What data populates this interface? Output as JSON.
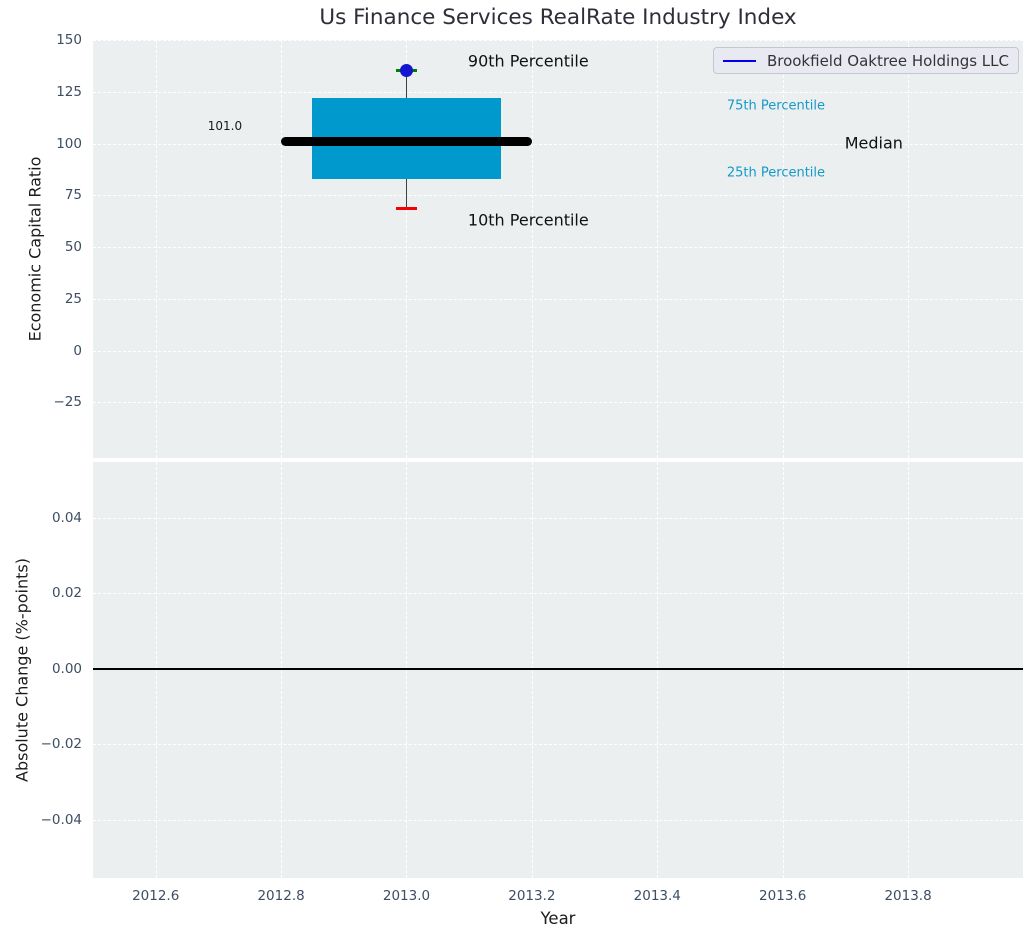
{
  "header": {
    "title": "Us Finance Services RealRate Industry Index"
  },
  "styles": {
    "plot_background": "#eceff0",
    "grid_color": "#ffffff",
    "tick_color": "#3d4e63",
    "title_color": "#2e2e38",
    "legend_background": "#e9eaf1"
  },
  "chart_data": [
    {
      "type": "boxplot",
      "title": "Us Finance Services RealRate Industry Index",
      "ylabel": "Economic Capital Ratio",
      "xlabel": "",
      "grid": true,
      "legend_position": "upper right",
      "series": [
        {
          "name": "Brookfield Oaktree Holdings LLC",
          "color": "#0000ee"
        }
      ],
      "xlim": [
        2012.5,
        2013.9833
      ],
      "ylim": [
        -52,
        150.2
      ],
      "yticks": {
        "values": [
          150,
          125,
          100,
          75,
          50,
          25,
          0,
          -25
        ],
        "labels": [
          "150",
          "125",
          "100",
          "75",
          "50",
          "25",
          "0",
          "−25"
        ]
      },
      "xticks": {
        "values": [
          2012.6,
          2012.8,
          2013.0,
          2013.2,
          2013.4,
          2013.6,
          2013.8
        ],
        "labels": [
          "2012.6",
          "2012.8",
          "2013.0",
          "2013.2",
          "2013.4",
          "2013.6",
          "2013.8"
        ]
      },
      "box": {
        "x": 2013.0,
        "p90": 135.4,
        "p75": 122,
        "median": 101.0,
        "p25": 83,
        "p10": 68.5,
        "median_label": "101.0",
        "box_halfwidth": 0.15,
        "median_halfwidth": 0.2,
        "cap_halfwidth": 0.0175,
        "colors": {
          "box_fill": "#0099cd",
          "median": "#000000",
          "whisker": "#3f3f3f",
          "p90_cap": "#008000",
          "p90_dot": "#1515d0",
          "p10_cap": "#f40000"
        }
      },
      "annotations": [
        {
          "text": "90th Percentile",
          "x": 2013.098,
          "y": 139.8,
          "color": "#111111",
          "size": 16
        },
        {
          "text": "10th Percentile",
          "x": 2013.098,
          "y": 62.9,
          "color": "#111111",
          "size": 16
        },
        {
          "text": "101.0",
          "x": 2012.683,
          "y": 108.6,
          "color": "#1a1a1a",
          "size": 12
        },
        {
          "text": "75th Percentile",
          "x": 2013.511,
          "y": 118.5,
          "color": "#1499c8",
          "size": 13
        },
        {
          "text": "Median",
          "x": 2013.699,
          "y": 100.6,
          "color": "#111111",
          "size": 16
        },
        {
          "text": "25th Percentile",
          "x": 2013.511,
          "y": 86.1,
          "color": "#1499c8",
          "size": 13
        }
      ]
    },
    {
      "type": "line",
      "title": "",
      "ylabel": "Absolute Change (%-points)",
      "xlabel": "Year",
      "grid": true,
      "series": [],
      "xlim": [
        2012.5,
        2013.9833
      ],
      "ylim": [
        -0.0554,
        0.0548
      ],
      "yticks": {
        "values": [
          0.04,
          0.02,
          0,
          -0.02,
          -0.04
        ],
        "labels": [
          "0.04",
          "0.02",
          "0.00",
          "−0.02",
          "−0.04"
        ]
      },
      "xticks": {
        "values": [
          2012.6,
          2012.8,
          2013.0,
          2013.2,
          2013.4,
          2013.6,
          2013.8
        ],
        "labels": [
          "2012.6",
          "2012.8",
          "2013.0",
          "2013.2",
          "2013.4",
          "2013.6",
          "2013.8"
        ]
      },
      "zero_line": {
        "y": 0.0,
        "color": "#000000"
      }
    }
  ]
}
